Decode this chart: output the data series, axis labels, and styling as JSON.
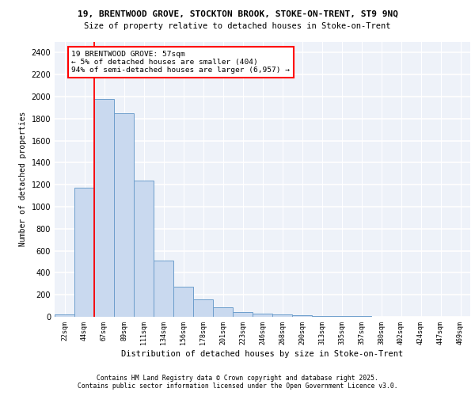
{
  "title1": "19, BRENTWOOD GROVE, STOCKTON BROOK, STOKE-ON-TRENT, ST9 9NQ",
  "title2": "Size of property relative to detached houses in Stoke-on-Trent",
  "xlabel": "Distribution of detached houses by size in Stoke-on-Trent",
  "ylabel": "Number of detached properties",
  "categories": [
    "22sqm",
    "44sqm",
    "67sqm",
    "89sqm",
    "111sqm",
    "134sqm",
    "156sqm",
    "178sqm",
    "201sqm",
    "223sqm",
    "246sqm",
    "268sqm",
    "290sqm",
    "313sqm",
    "335sqm",
    "357sqm",
    "380sqm",
    "402sqm",
    "424sqm",
    "447sqm",
    "469sqm"
  ],
  "values": [
    25,
    1175,
    1975,
    1850,
    1240,
    510,
    275,
    155,
    85,
    45,
    30,
    25,
    15,
    8,
    5,
    4,
    3,
    2,
    2,
    1,
    1
  ],
  "bar_color": "#c9d9ef",
  "bar_edge_color": "#6d9ecc",
  "vline_color": "red",
  "annotation_title": "19 BRENTWOOD GROVE: 57sqm",
  "annotation_line1": "← 5% of detached houses are smaller (404)",
  "annotation_line2": "94% of semi-detached houses are larger (6,957) →",
  "annotation_box_color": "white",
  "annotation_box_edge": "red",
  "ylim": [
    0,
    2500
  ],
  "yticks": [
    0,
    200,
    400,
    600,
    800,
    1000,
    1200,
    1400,
    1600,
    1800,
    2000,
    2200,
    2400
  ],
  "footnote1": "Contains HM Land Registry data © Crown copyright and database right 2025.",
  "footnote2": "Contains public sector information licensed under the Open Government Licence v3.0.",
  "bg_color": "#eef2f9",
  "grid_color": "white"
}
